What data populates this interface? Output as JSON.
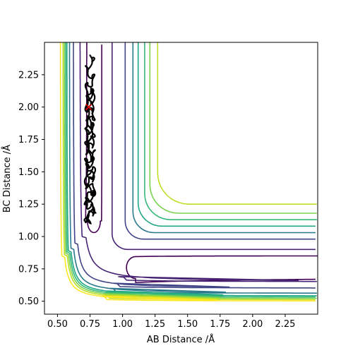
{
  "chart_data": {
    "type": "contour",
    "title": "",
    "xlabel": "AB Distance /Å",
    "ylabel": "BC Distance /Å",
    "xlim": [
      0.4,
      2.5
    ],
    "ylim": [
      0.4,
      2.5
    ],
    "xticks": [
      "0.50",
      "0.75",
      "1.00",
      "1.25",
      "1.50",
      "1.75",
      "2.00",
      "2.25"
    ],
    "yticks": [
      "0.50",
      "0.75",
      "1.00",
      "1.25",
      "1.50",
      "1.75",
      "2.00",
      "2.25"
    ],
    "grid": false,
    "colormap": "viridis",
    "contour_levels": [
      {
        "level": 1,
        "color": "#440154",
        "y_asymptote": 0.85,
        "x_asymptote": 0.84
      },
      {
        "level": 2,
        "color": "#482475",
        "y_asymptote": 0.65,
        "x_asymptote": 0.67
      },
      {
        "level": 3,
        "color": "#414487",
        "y_asymptote": 0.6,
        "x_asymptote": 0.62
      },
      {
        "level": 4,
        "color": "#2a788e",
        "y_asymptote": 0.56,
        "x_asymptote": 0.59
      },
      {
        "level": 5,
        "color": "#22a884",
        "y_asymptote": 0.54,
        "x_asymptote": 0.57
      },
      {
        "level": 6,
        "color": "#35b779",
        "y_asymptote": 0.53,
        "x_asymptote": 0.56
      },
      {
        "level": 7,
        "color": "#7ad151",
        "y_asymptote": 0.52,
        "x_asymptote": 0.55
      },
      {
        "level": 8,
        "color": "#bddf26",
        "y_asymptote": 0.51,
        "x_asymptote": 0.54
      },
      {
        "level": 9,
        "color": "#fde725",
        "y_asymptote": 0.5,
        "x_asymptote": 0.52
      }
    ],
    "trajectory": {
      "start": [
        0.74,
        2.0
      ],
      "x_center": 0.75,
      "y_range": [
        1.1,
        2.4
      ],
      "marker": "x",
      "marker_color": "#ff0000",
      "line_color": "#000000"
    }
  }
}
